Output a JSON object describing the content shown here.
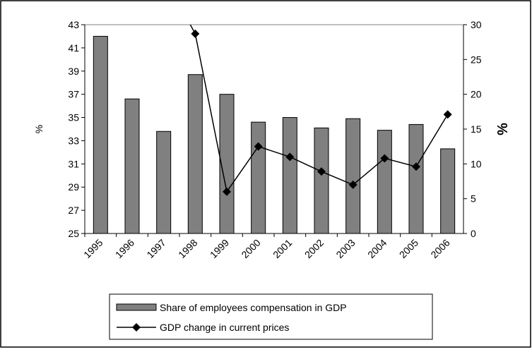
{
  "chart_data": {
    "type": "bar_line",
    "categories": [
      "1995",
      "1996",
      "1997",
      "1998",
      "1999",
      "2000",
      "2001",
      "2002",
      "2003",
      "2004",
      "2005",
      "2006"
    ],
    "ylabel": "%",
    "y2label": "%",
    "ylim": [
      25,
      43
    ],
    "yticks": [
      25,
      27,
      29,
      31,
      33,
      35,
      37,
      39,
      41,
      43
    ],
    "y2lim": [
      0,
      30
    ],
    "y2ticks": [
      0,
      5,
      10,
      15,
      20,
      25,
      30
    ],
    "series": [
      {
        "name": "Share of employees compensation in GDP",
        "type": "bar",
        "color": "#808080",
        "values": [
          42.0,
          36.6,
          33.8,
          38.7,
          37.0,
          34.6,
          35.0,
          34.1,
          34.9,
          33.9,
          34.4,
          32.3
        ]
      },
      {
        "name": "GDP change in current prices",
        "type": "line",
        "axis": "y2",
        "color": "#000000",
        "values": [
          null,
          null,
          37,
          28.7,
          6.0,
          12.5,
          11.0,
          8.9,
          7.0,
          10.8,
          9.6,
          17.1
        ]
      }
    ],
    "legend": "bottom"
  }
}
